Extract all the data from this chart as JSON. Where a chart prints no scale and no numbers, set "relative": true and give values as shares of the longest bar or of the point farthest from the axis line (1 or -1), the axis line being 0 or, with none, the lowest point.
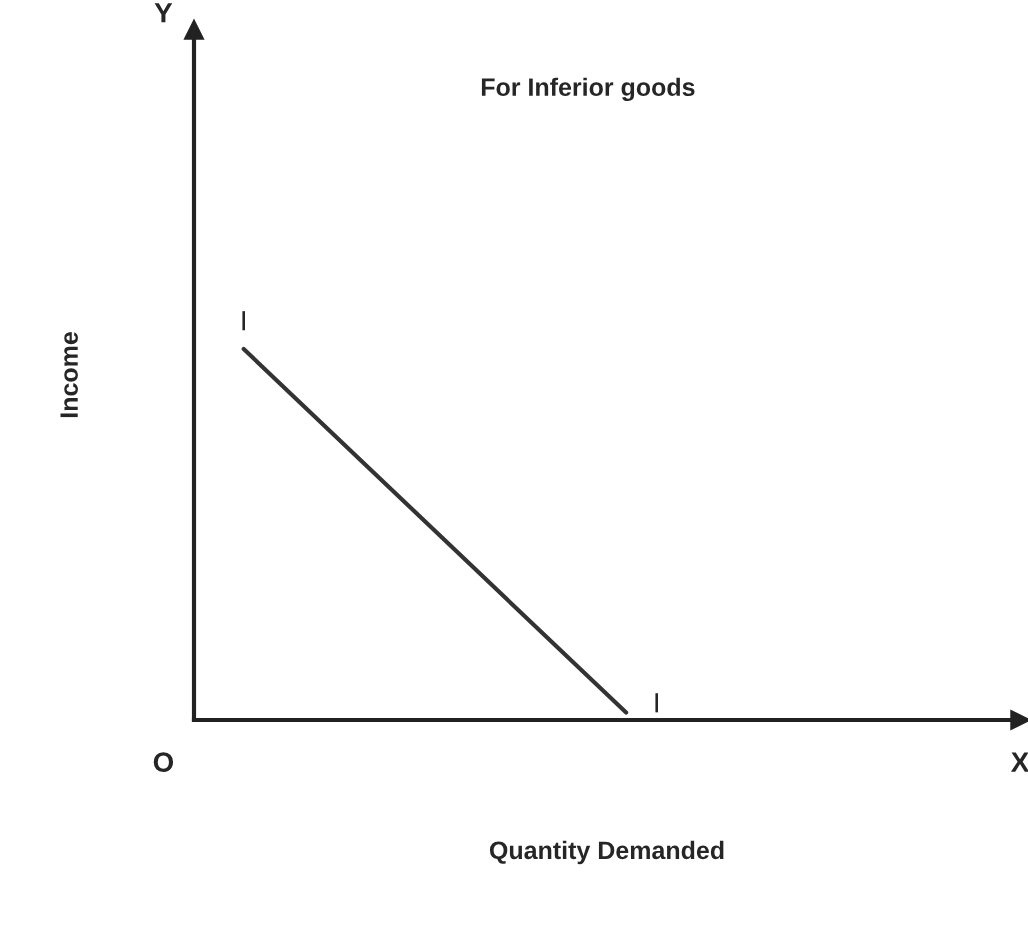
{
  "chart_data": {
    "type": "line",
    "relative": true,
    "categories": [
      null,
      null
    ],
    "series": [
      {
        "color": "#333333",
        "values": [
          1,
          0.02
        ]
      }
    ],
    "xlabel": "Quantity Demanded",
    "ylabel": "Income",
    "annotations": [
      "For Inferior goods",
      "I",
      "I",
      "Y",
      "X",
      "O"
    ],
    "grid": false,
    "legend": false,
    "marker": "none",
    "line_style": "solid"
  }
}
